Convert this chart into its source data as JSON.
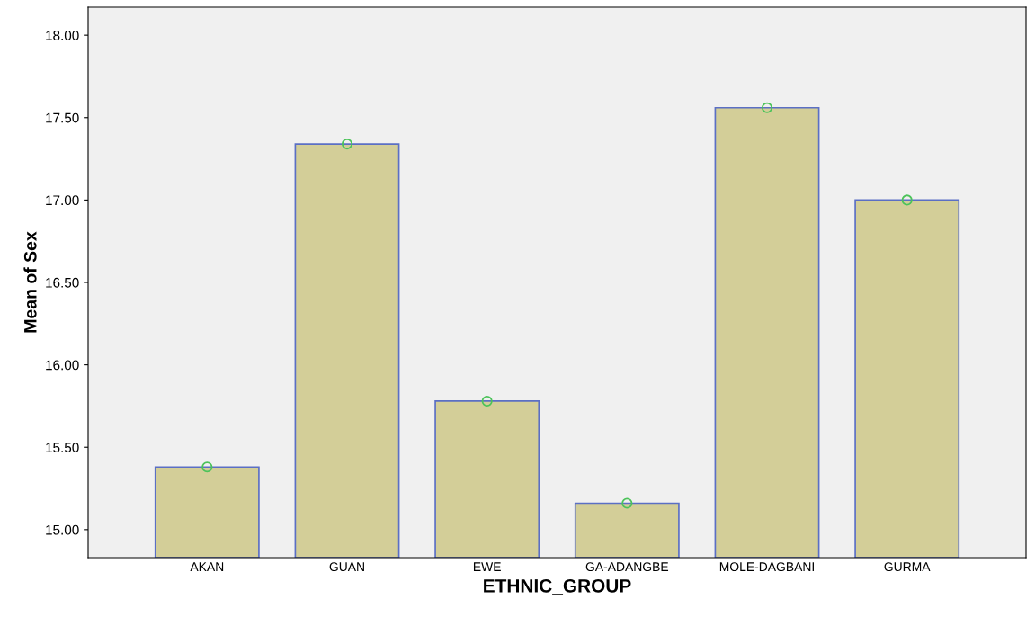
{
  "chart_data": {
    "type": "bar",
    "xlabel": "ETHNIC_GROUP",
    "ylabel": "Mean of Sex",
    "categories": [
      "AKAN",
      "GUAN",
      "EWE",
      "GA-ADANGBE",
      "MOLE-DAGBANI",
      "GURMA"
    ],
    "series": [
      {
        "color": "#d3ce98",
        "values": [
          15.38,
          17.34,
          15.78,
          15.16,
          17.56,
          17.0
        ]
      },
      {
        "type": "scatter",
        "color": "#4cc35a",
        "x": [
          "AKAN",
          "GUAN",
          "EWE",
          "GA-ADANGBE",
          "MOLE-DAGBANI",
          "GURMA"
        ],
        "values": [
          15.38,
          17.34,
          15.78,
          15.16,
          17.56,
          17.0
        ]
      }
    ],
    "ylim": [
      14.83,
      18.17
    ],
    "yticks": [
      {
        "value": 15,
        "label": "15.00"
      },
      {
        "value": 15.5,
        "label": "15.50"
      },
      {
        "value": 16,
        "label": "16.00"
      },
      {
        "value": 16.5,
        "label": "16.50"
      },
      {
        "value": 17,
        "label": "17.00"
      },
      {
        "value": 17.5,
        "label": "17.50"
      },
      {
        "value": 18,
        "label": "18.00"
      }
    ],
    "marker": "circle",
    "grid": false,
    "legend": false
  }
}
